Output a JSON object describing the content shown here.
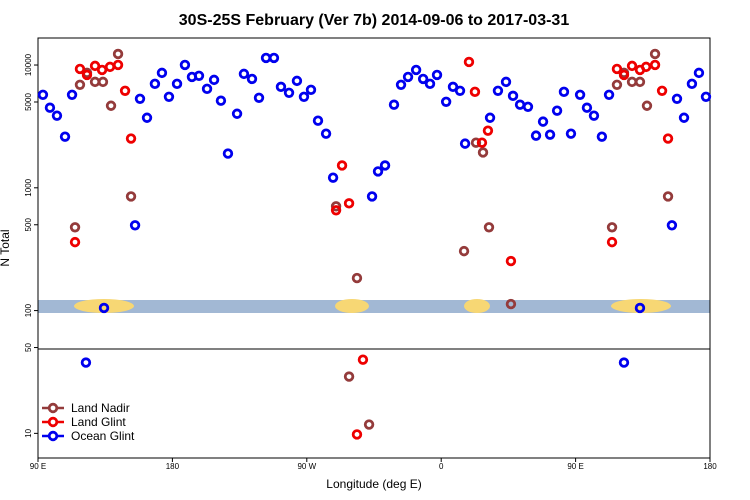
{
  "chart_data": {
    "type": "scatter",
    "title": "30S-25S February (Ver 7b)   2014-09-06 to 2017-03-31",
    "x_label": "Longitude (deg E)",
    "y_label": "N Total",
    "log_y": true,
    "legend": "bottom-left",
    "xlim": [
      90,
      540
    ],
    "xticks": [
      {
        "value": 90,
        "label": "90 E"
      },
      180,
      {
        "value": 270,
        "label": "90 W"
      },
      {
        "value": 360,
        "label": "0"
      },
      {
        "value": 450,
        "label": "90 E"
      },
      {
        "value": 540,
        "label": "180"
      }
    ],
    "ylim": [
      6.3,
      16600
    ],
    "yticks": [
      10,
      50,
      100,
      500,
      1000,
      5000,
      10000
    ],
    "series": [
      {
        "name": "Land Nadir",
        "color": "#943b3b",
        "x": [
          114.8,
          118.1,
          122.8,
          128.2,
          133.5,
          138.9,
          143.6,
          152.3,
          289.6,
          298.3,
          303.6,
          311.7,
          375.3,
          383.3,
          388.0,
          392.0,
          406.7,
          474.4,
          477.7,
          482.4,
          487.8,
          493.1,
          497.8,
          503.2,
          511.9
        ],
        "values": [
          477,
          6900,
          8630,
          7290,
          7290,
          4660,
          12300,
          851,
          707,
          29.0,
          184,
          11.8,
          305,
          2330,
          1940,
          477,
          113,
          477,
          6900,
          8630,
          7290,
          7290,
          4660,
          12300,
          851
        ]
      },
      {
        "name": "Land Glint",
        "color": "#ee0000",
        "x": [
          114.8,
          118.1,
          122.8,
          128.2,
          132.9,
          138.2,
          143.6,
          148.3,
          152.3,
          289.6,
          293.6,
          298.3,
          303.6,
          307.6,
          378.6,
          382.6,
          387.3,
          391.3,
          406.7,
          474.4,
          477.7,
          482.4,
          487.8,
          493.1,
          497.2,
          503.2,
          507.9,
          511.9
        ],
        "values": [
          361,
          9290,
          8310,
          9840,
          9120,
          9660,
          10020,
          6170,
          2520,
          656,
          1520,
          747,
          9.8,
          39.8,
          10590,
          6050,
          2330,
          2920,
          253,
          361,
          9290,
          8310,
          9840,
          9120,
          9660,
          10020,
          6170,
          2520
        ]
      },
      {
        "name": "Ocean Glint",
        "color": "#0000ee",
        "x": [
          93.3,
          98.0,
          102.7,
          108.1,
          112.8,
          122.1,
          134.2,
          155.0,
          158.3,
          163.0,
          168.3,
          173.0,
          177.7,
          183.1,
          188.4,
          193.1,
          197.8,
          203.2,
          207.9,
          212.5,
          217.2,
          223.3,
          227.9,
          233.3,
          238.0,
          242.7,
          248.0,
          252.7,
          258.1,
          263.4,
          268.1,
          272.8,
          277.5,
          282.9,
          287.6,
          313.7,
          317.7,
          322.4,
          328.4,
          333.1,
          337.8,
          343.2,
          347.9,
          352.5,
          357.2,
          363.3,
          367.9,
          372.6,
          376.0,
          392.7,
          398.0,
          403.4,
          408.1,
          412.8,
          418.1,
          423.5,
          428.2,
          432.9,
          437.6,
          442.2,
          446.9,
          453.0,
          457.6,
          462.3,
          467.6,
          472.4,
          482.4,
          493.1,
          514.5,
          517.9,
          522.6,
          527.9,
          532.6,
          537.3
        ],
        "values": [
          5720,
          4490,
          3870,
          2610,
          5720,
          37.7,
          105,
          495,
          5310,
          3720,
          7030,
          8630,
          5510,
          7030,
          10020,
          8000,
          8170,
          6400,
          7570,
          5120,
          1900,
          4010,
          8470,
          7710,
          5410,
          11430,
          11430,
          6640,
          5940,
          7430,
          5510,
          6280,
          3520,
          2760,
          1210,
          851,
          1360,
          1520,
          4750,
          6900,
          8000,
          9120,
          7710,
          7030,
          8310,
          5020,
          6640,
          6170,
          2290,
          3720,
          6170,
          7290,
          5610,
          4750,
          4570,
          2660,
          3460,
          2710,
          4250,
          6050,
          2760,
          5720,
          4490,
          3870,
          2610,
          5720,
          37.7,
          105,
          495,
          5310,
          3720,
          7030,
          8630,
          5510
        ]
      }
    ]
  }
}
